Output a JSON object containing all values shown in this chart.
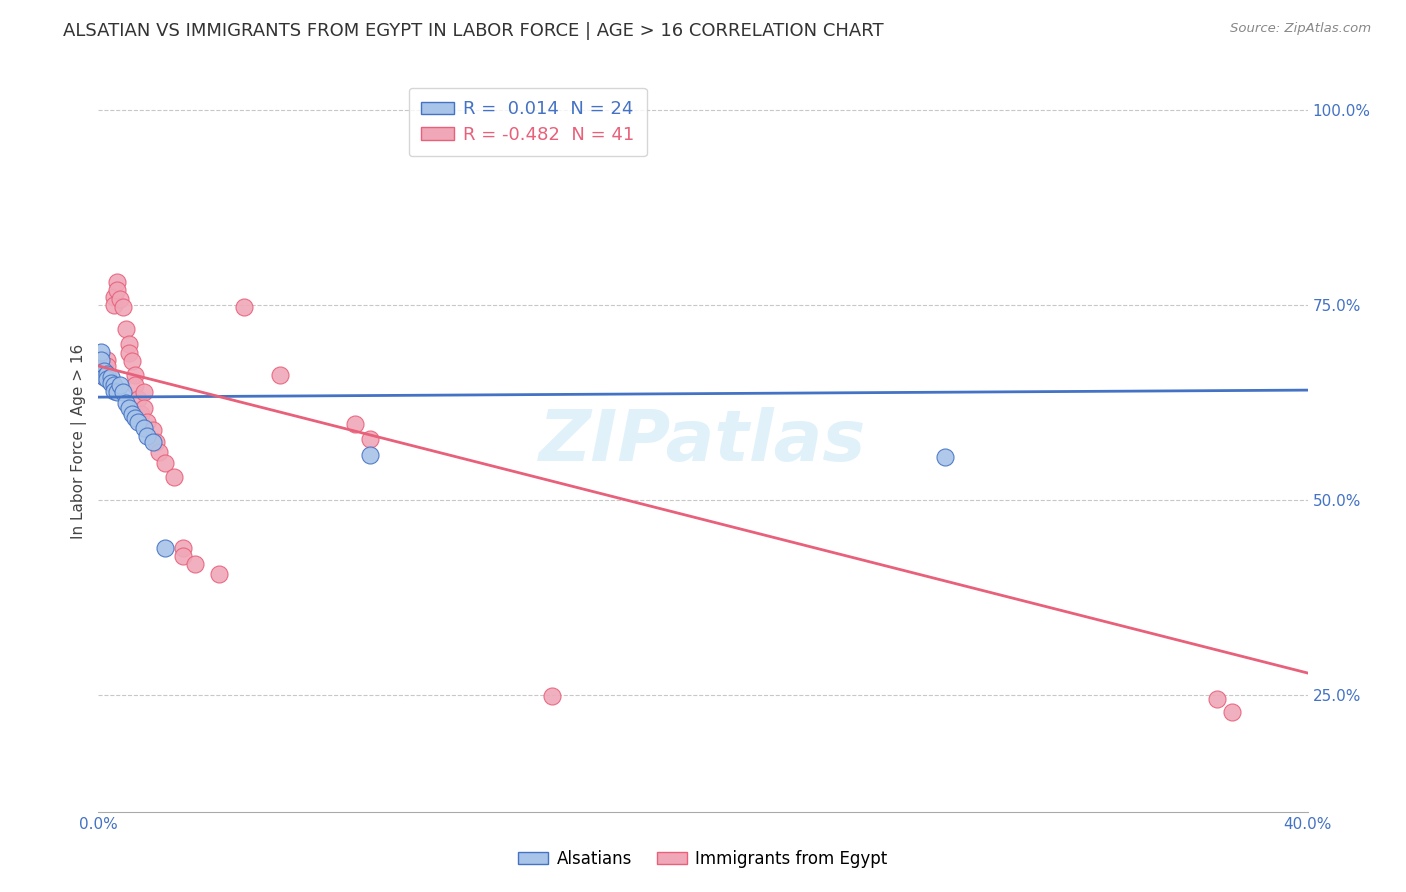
{
  "title": "ALSATIAN VS IMMIGRANTS FROM EGYPT IN LABOR FORCE | AGE > 16 CORRELATION CHART",
  "source": "Source: ZipAtlas.com",
  "ylabel": "In Labor Force | Age > 16",
  "xlim": [
    0.0,
    0.4
  ],
  "ylim": [
    0.1,
    1.05
  ],
  "ytick_values": [
    0.25,
    0.5,
    0.75,
    1.0
  ],
  "xtick_values": [
    0.0,
    0.1,
    0.2,
    0.3,
    0.4
  ],
  "grid_color": "#c8c8c8",
  "background_color": "#ffffff",
  "watermark": "ZIPatlas",
  "legend_entries": [
    {
      "label": "R =  0.014  N = 24"
    },
    {
      "label": "R = -0.482  N = 41"
    }
  ],
  "blue_scatter": [
    [
      0.001,
      0.69
    ],
    [
      0.001,
      0.68
    ],
    [
      0.002,
      0.665
    ],
    [
      0.002,
      0.658
    ],
    [
      0.003,
      0.662
    ],
    [
      0.003,
      0.655
    ],
    [
      0.004,
      0.658
    ],
    [
      0.004,
      0.65
    ],
    [
      0.005,
      0.648
    ],
    [
      0.005,
      0.64
    ],
    [
      0.006,
      0.638
    ],
    [
      0.007,
      0.648
    ],
    [
      0.008,
      0.638
    ],
    [
      0.009,
      0.625
    ],
    [
      0.01,
      0.618
    ],
    [
      0.011,
      0.61
    ],
    [
      0.012,
      0.605
    ],
    [
      0.013,
      0.6
    ],
    [
      0.015,
      0.592
    ],
    [
      0.016,
      0.582
    ],
    [
      0.018,
      0.575
    ],
    [
      0.022,
      0.438
    ],
    [
      0.09,
      0.558
    ],
    [
      0.28,
      0.555
    ]
  ],
  "pink_scatter": [
    [
      0.001,
      0.672
    ],
    [
      0.001,
      0.66
    ],
    [
      0.002,
      0.672
    ],
    [
      0.002,
      0.66
    ],
    [
      0.003,
      0.68
    ],
    [
      0.003,
      0.672
    ],
    [
      0.003,
      0.66
    ],
    [
      0.004,
      0.652
    ],
    [
      0.005,
      0.76
    ],
    [
      0.005,
      0.75
    ],
    [
      0.006,
      0.78
    ],
    [
      0.006,
      0.77
    ],
    [
      0.007,
      0.758
    ],
    [
      0.008,
      0.748
    ],
    [
      0.009,
      0.72
    ],
    [
      0.01,
      0.7
    ],
    [
      0.01,
      0.688
    ],
    [
      0.011,
      0.678
    ],
    [
      0.012,
      0.66
    ],
    [
      0.012,
      0.648
    ],
    [
      0.013,
      0.63
    ],
    [
      0.014,
      0.61
    ],
    [
      0.015,
      0.638
    ],
    [
      0.015,
      0.618
    ],
    [
      0.016,
      0.6
    ],
    [
      0.018,
      0.59
    ],
    [
      0.019,
      0.575
    ],
    [
      0.02,
      0.562
    ],
    [
      0.022,
      0.548
    ],
    [
      0.025,
      0.53
    ],
    [
      0.028,
      0.438
    ],
    [
      0.028,
      0.428
    ],
    [
      0.032,
      0.418
    ],
    [
      0.04,
      0.405
    ],
    [
      0.048,
      0.748
    ],
    [
      0.06,
      0.66
    ],
    [
      0.085,
      0.598
    ],
    [
      0.09,
      0.578
    ],
    [
      0.15,
      0.248
    ],
    [
      0.37,
      0.245
    ],
    [
      0.375,
      0.228
    ]
  ],
  "blue_line_x": [
    0.0,
    0.4
  ],
  "blue_line_y": [
    0.632,
    0.641
  ],
  "pink_line_x": [
    0.0,
    0.4
  ],
  "pink_line_y": [
    0.672,
    0.278
  ],
  "blue_color": "#4472c4",
  "pink_color": "#e8607a",
  "blue_scatter_color": "#a8c4e8",
  "pink_scatter_color": "#f0a8b8",
  "title_fontsize": 13,
  "axis_label_fontsize": 11,
  "tick_fontsize": 11,
  "legend_fontsize": 13
}
